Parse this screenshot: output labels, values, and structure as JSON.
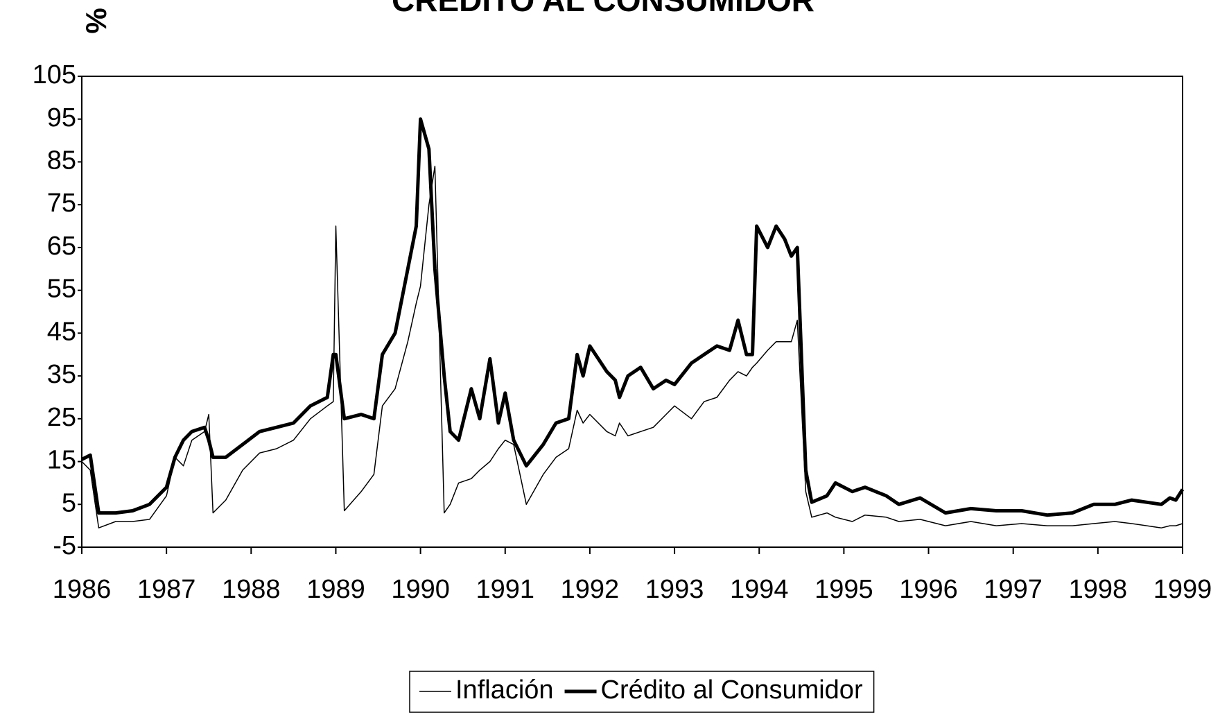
{
  "chart_data": {
    "type": "line",
    "title": "CRÉDITO AL CONSUMIDOR",
    "y_label": "%",
    "x": [
      1986.0,
      1986.1,
      1986.2,
      1986.4,
      1986.6,
      1986.8,
      1987.0,
      1987.1,
      1987.2,
      1987.3,
      1987.45,
      1987.5,
      1987.55,
      1987.7,
      1987.9,
      1988.1,
      1988.3,
      1988.5,
      1988.7,
      1988.9,
      1988.97,
      1989.0,
      1989.1,
      1989.3,
      1989.45,
      1989.55,
      1989.7,
      1989.85,
      1989.95,
      1990.0,
      1990.1,
      1990.17,
      1990.28,
      1990.35,
      1990.45,
      1990.6,
      1990.7,
      1990.82,
      1990.92,
      1991.0,
      1991.1,
      1991.25,
      1991.45,
      1991.6,
      1991.75,
      1991.85,
      1991.92,
      1992.0,
      1992.2,
      1992.3,
      1992.35,
      1992.45,
      1992.6,
      1992.75,
      1992.9,
      1993.0,
      1993.2,
      1993.35,
      1993.5,
      1993.65,
      1993.75,
      1993.85,
      1993.92,
      1993.97,
      1994.1,
      1994.2,
      1994.3,
      1994.38,
      1994.45,
      1994.55,
      1994.62,
      1994.8,
      1994.9,
      1995.1,
      1995.25,
      1995.5,
      1995.65,
      1995.9,
      1996.2,
      1996.5,
      1996.8,
      1997.1,
      1997.4,
      1997.7,
      1997.95,
      1998.2,
      1998.4,
      1998.75,
      1998.85,
      1998.92,
      1999.0
    ],
    "series": [
      {
        "name": "Inflación",
        "color": "#000000",
        "width": 1.5,
        "values": [
          15,
          13,
          -0.5,
          1,
          1,
          1.5,
          7,
          16,
          14,
          20,
          22,
          26,
          3,
          6,
          13,
          17,
          18,
          20,
          25,
          28,
          29,
          70,
          3.5,
          8,
          12,
          28,
          32,
          43,
          52,
          56,
          75,
          84,
          3,
          5,
          10,
          11,
          13,
          15,
          18,
          20,
          19,
          5,
          12,
          16,
          18,
          27,
          24,
          26,
          22,
          21,
          24,
          21,
          22,
          23,
          26,
          28,
          25,
          29,
          30,
          34,
          36,
          35,
          37,
          38,
          41,
          43,
          43,
          43,
          48,
          8,
          2,
          3,
          2,
          1,
          2.5,
          2,
          1,
          1.5,
          0,
          1,
          0,
          0.5,
          0,
          0,
          0.5,
          1,
          0.5,
          -0.5,
          0,
          0,
          0.5
        ]
      },
      {
        "name": "Crédito al Consumidor",
        "color": "#000000",
        "width": 5,
        "values": [
          15.5,
          16.5,
          3,
          3,
          3.5,
          5,
          9,
          16,
          20,
          22,
          23,
          20,
          16,
          16,
          19,
          22,
          23,
          24,
          28,
          30,
          40,
          40,
          25,
          26,
          25,
          40,
          45,
          60,
          70,
          95,
          88,
          60,
          35,
          22,
          20,
          32,
          25,
          39,
          24,
          31,
          20,
          14,
          19,
          24,
          25,
          40,
          35,
          42,
          36,
          34,
          30,
          35,
          37,
          32,
          34,
          33,
          38,
          40,
          42,
          41,
          48,
          40,
          40,
          70,
          65,
          70,
          67,
          63,
          65,
          13,
          5.5,
          7,
          10,
          8,
          9,
          7,
          5,
          6.5,
          3,
          4,
          3.5,
          3.5,
          2.5,
          3,
          5,
          5,
          6,
          5,
          6.5,
          6,
          8.5
        ]
      }
    ],
    "xlim": [
      1986,
      1999
    ],
    "xticks": [
      1986,
      1987,
      1988,
      1989,
      1990,
      1991,
      1992,
      1993,
      1994,
      1995,
      1996,
      1997,
      1998,
      1999
    ],
    "ylim": [
      -5,
      105
    ],
    "yticks": [
      -5,
      5,
      15,
      25,
      35,
      45,
      55,
      65,
      75,
      85,
      95,
      105
    ],
    "grid": false,
    "legend": "bottom"
  }
}
